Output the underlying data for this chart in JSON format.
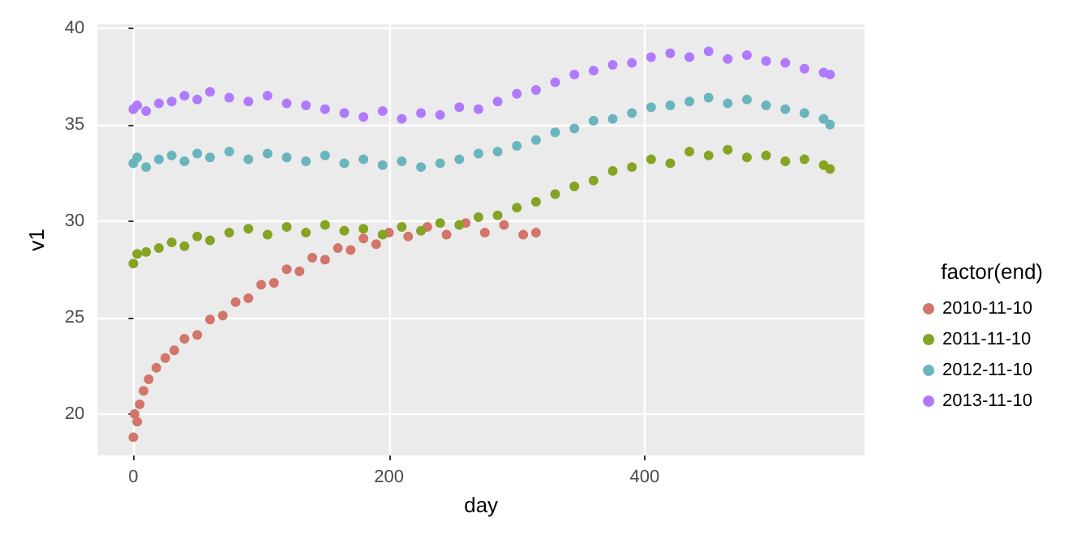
{
  "chart_data": {
    "type": "scatter",
    "xlabel": "day",
    "ylabel": "v1",
    "legend_title": "factor(end)",
    "legend": "right",
    "grid": true,
    "marker": "circle",
    "xlim": [
      -28,
      572
    ],
    "xticks": [
      0,
      200,
      400
    ],
    "ylim": [
      17.85,
      40.2
    ],
    "yticks": [
      20,
      25,
      30,
      35,
      40
    ],
    "series": [
      {
        "name": "2010-11-10",
        "color": "#d2756a",
        "x": [
          0,
          1,
          3,
          5,
          8,
          12,
          18,
          25,
          32,
          40,
          50,
          60,
          70,
          80,
          90,
          100,
          110,
          120,
          130,
          140,
          150,
          160,
          170,
          180,
          190,
          200,
          215,
          230,
          245,
          260,
          275,
          290,
          305,
          315
        ],
        "values": [
          18.8,
          20.0,
          19.6,
          20.5,
          21.2,
          21.8,
          22.4,
          22.9,
          23.3,
          23.9,
          24.1,
          24.9,
          25.1,
          25.8,
          26.0,
          26.7,
          26.8,
          27.5,
          27.4,
          28.1,
          28.0,
          28.6,
          28.5,
          29.1,
          28.8,
          29.4,
          29.2,
          29.7,
          29.3,
          29.9,
          29.4,
          29.8,
          29.3,
          29.4
        ]
      },
      {
        "name": "2011-11-10",
        "color": "#85a424",
        "x": [
          0,
          3,
          10,
          20,
          30,
          40,
          50,
          60,
          75,
          90,
          105,
          120,
          135,
          150,
          165,
          180,
          195,
          210,
          225,
          240,
          255,
          270,
          285,
          300,
          315,
          330,
          345,
          360,
          375,
          390,
          405,
          420,
          435,
          450,
          465,
          480,
          495,
          510,
          525,
          540,
          545
        ],
        "values": [
          27.8,
          28.3,
          28.4,
          28.6,
          28.9,
          28.7,
          29.2,
          29.0,
          29.4,
          29.6,
          29.3,
          29.7,
          29.4,
          29.8,
          29.5,
          29.6,
          29.3,
          29.7,
          29.5,
          29.9,
          29.8,
          30.2,
          30.3,
          30.7,
          31.0,
          31.4,
          31.8,
          32.1,
          32.6,
          32.8,
          33.2,
          33.0,
          33.6,
          33.4,
          33.7,
          33.3,
          33.4,
          33.1,
          33.2,
          32.9,
          32.7
        ]
      },
      {
        "name": "2012-11-10",
        "color": "#6ab5bd",
        "x": [
          0,
          3,
          10,
          20,
          30,
          40,
          50,
          60,
          75,
          90,
          105,
          120,
          135,
          150,
          165,
          180,
          195,
          210,
          225,
          240,
          255,
          270,
          285,
          300,
          315,
          330,
          345,
          360,
          375,
          390,
          405,
          420,
          435,
          450,
          465,
          480,
          495,
          510,
          525,
          540,
          545
        ],
        "values": [
          33.0,
          33.3,
          32.8,
          33.2,
          33.4,
          33.1,
          33.5,
          33.3,
          33.6,
          33.2,
          33.5,
          33.3,
          33.1,
          33.4,
          33.0,
          33.2,
          32.9,
          33.1,
          32.8,
          33.0,
          33.2,
          33.5,
          33.6,
          33.9,
          34.2,
          34.6,
          34.8,
          35.2,
          35.3,
          35.6,
          35.9,
          36.0,
          36.2,
          36.4,
          36.1,
          36.3,
          36.0,
          35.8,
          35.6,
          35.3,
          35.0
        ]
      },
      {
        "name": "2013-11-10",
        "color": "#b07aff",
        "x": [
          0,
          3,
          10,
          20,
          30,
          40,
          50,
          60,
          75,
          90,
          105,
          120,
          135,
          150,
          165,
          180,
          195,
          210,
          225,
          240,
          255,
          270,
          285,
          300,
          315,
          330,
          345,
          360,
          375,
          390,
          405,
          420,
          435,
          450,
          465,
          480,
          495,
          510,
          525,
          540,
          545
        ],
        "values": [
          35.8,
          36.0,
          35.7,
          36.1,
          36.2,
          36.5,
          36.3,
          36.7,
          36.4,
          36.2,
          36.5,
          36.1,
          36.0,
          35.8,
          35.6,
          35.4,
          35.7,
          35.3,
          35.6,
          35.5,
          35.9,
          35.8,
          36.2,
          36.6,
          36.8,
          37.2,
          37.6,
          37.8,
          38.1,
          38.2,
          38.5,
          38.7,
          38.5,
          38.8,
          38.4,
          38.6,
          38.3,
          38.2,
          37.9,
          37.7,
          37.6
        ]
      }
    ]
  }
}
